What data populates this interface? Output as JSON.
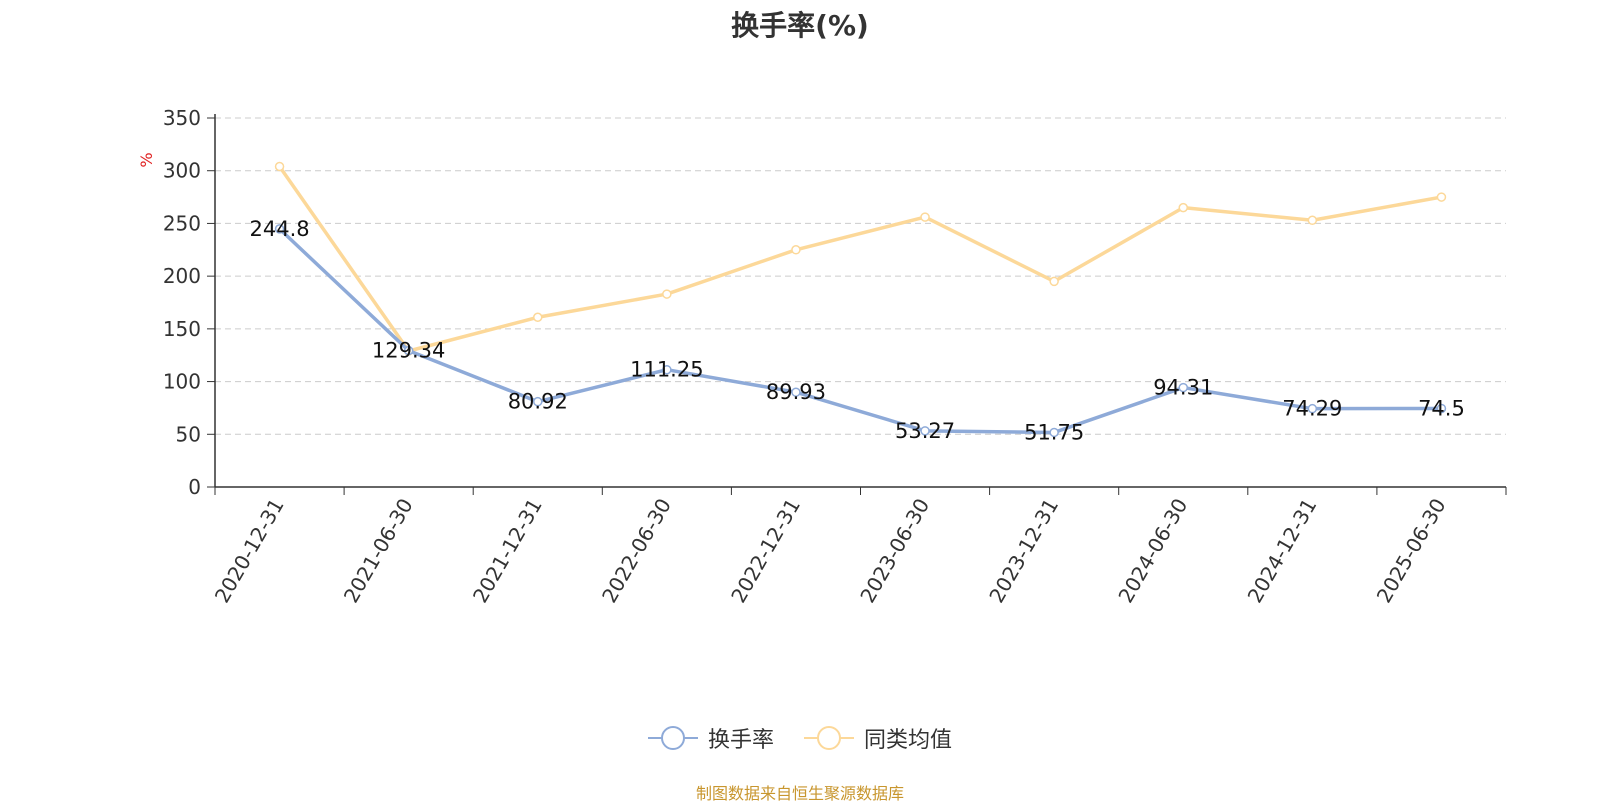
{
  "title": "换手率(%)",
  "source": "制图数据来自恒生聚源数据库",
  "chart_data": {
    "type": "line",
    "title": "换手率(%)",
    "ylabel": "%",
    "xlabel": "",
    "ylim": [
      0,
      350
    ],
    "yticks": [
      0,
      50,
      100,
      150,
      200,
      250,
      300,
      350
    ],
    "grid": true,
    "legend": "bottom-center",
    "categories": [
      "2020-12-31",
      "2021-06-30",
      "2021-12-31",
      "2022-06-30",
      "2022-12-31",
      "2023-06-30",
      "2023-12-31",
      "2024-06-30",
      "2024-12-31",
      "2025-06-30"
    ],
    "series": [
      {
        "name": "换手率",
        "color": "#8eaad8",
        "values": [
          244.8,
          129.34,
          80.92,
          111.25,
          89.93,
          53.27,
          51.75,
          94.31,
          74.29,
          74.5
        ],
        "labels": [
          "244.8",
          "129.34",
          "80.92",
          "111.25",
          "89.93",
          "53.27",
          "51.75",
          "94.31",
          "74.29",
          "74.5"
        ]
      },
      {
        "name": "同类均值",
        "color": "#fcd899",
        "values": [
          304,
          129,
          161,
          183,
          225,
          256,
          195,
          265,
          253,
          275
        ]
      }
    ]
  }
}
